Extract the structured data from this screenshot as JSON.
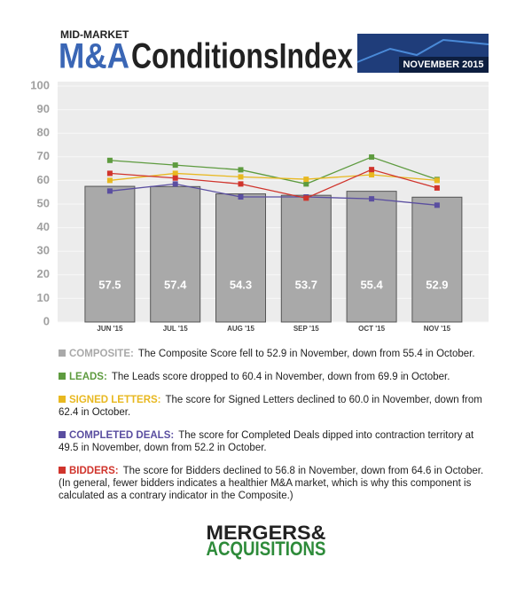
{
  "header": {
    "kicker": "MID-MARKET",
    "title_parts": [
      "M&A",
      "ConditionsIndex"
    ],
    "date": "NOVEMBER 2015"
  },
  "chart_data": {
    "type": "bar",
    "categories": [
      "JUN '15",
      "JUL '15",
      "AUG '15",
      "SEP '15",
      "OCT '15",
      "NOV '15"
    ],
    "ylim": [
      0,
      100
    ],
    "yticks": [
      0,
      10,
      20,
      30,
      40,
      50,
      60,
      70,
      80,
      90,
      100
    ],
    "grid": true,
    "series": [
      {
        "name": "COMPOSITE:",
        "type": "bar",
        "color": "#a9a9a9",
        "values": [
          57.5,
          57.4,
          54.3,
          53.7,
          55.4,
          52.9
        ],
        "description": "The Composite Score fell to 52.9 in November, down from 55.4 in October."
      },
      {
        "name": "LEADS:",
        "type": "line",
        "color": "#5e9b3f",
        "values": [
          68.5,
          66.5,
          64.5,
          58.5,
          69.9,
          60.4
        ],
        "description": "The Leads score dropped to 60.4 in November, down from 69.9 in October."
      },
      {
        "name": "SIGNED LETTERS:",
        "type": "line",
        "color": "#e8b820",
        "values": [
          60,
          63,
          61.5,
          60.5,
          62.4,
          60.0
        ],
        "description": "The score for Signed Letters declined to 60.0 in November, down from 62.4 in October."
      },
      {
        "name": "COMPLETED DEALS:",
        "type": "line",
        "color": "#5a4ea0",
        "values": [
          55.5,
          58.5,
          53,
          53,
          52.2,
          49.5
        ],
        "description": "The score for Completed Deals dipped into contraction territory at 49.5 in November, down from 52.2 in October."
      },
      {
        "name": "BIDDERS:",
        "type": "line",
        "color": "#d0342c",
        "values": [
          63,
          61,
          58.5,
          52.5,
          64.6,
          56.8
        ],
        "description": "The score for Bidders declined to 56.8 in November, down from 64.6 in October. (In general, fewer bidders indicates a healthier M&A market, which is why this component is calculated as a contrary indicator in the Composite.)"
      }
    ]
  },
  "footer": {
    "logo": [
      "MERGERS&",
      "ACQUISITIONS"
    ]
  }
}
